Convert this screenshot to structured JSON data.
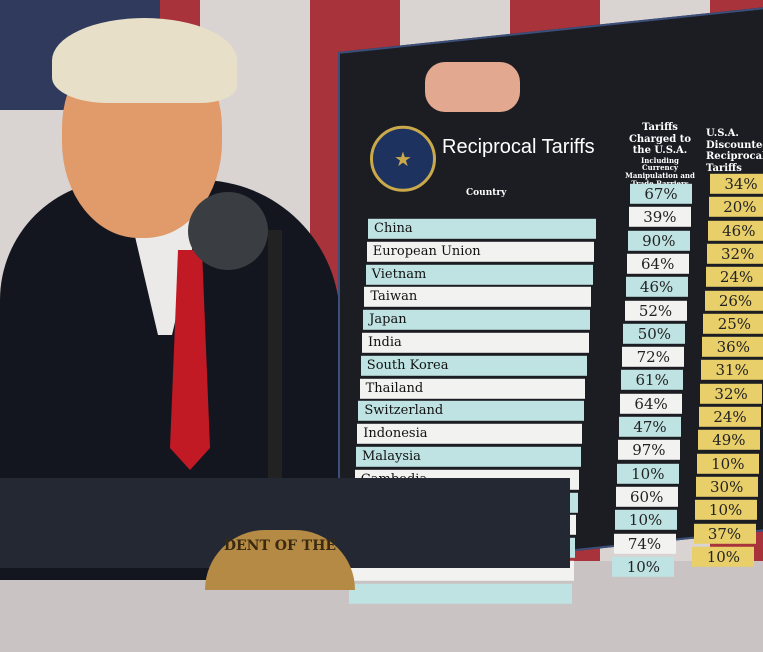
{
  "board": {
    "title": "Reciprocal Tariffs",
    "country_header": "Country",
    "charged_header": "Tariffs Charged to the U.S.A.",
    "charged_subheader": "Including Currency Manipulation and Trade Barriers",
    "discount_header": "U.S.A. Discounted Reciprocal Tariffs",
    "seal_icon": "presidential-seal",
    "rows": [
      {
        "country": "China",
        "charged": "67%",
        "reciprocal": "34%"
      },
      {
        "country": "European Union",
        "charged": "39%",
        "reciprocal": "20%"
      },
      {
        "country": "Vietnam",
        "charged": "90%",
        "reciprocal": "46%"
      },
      {
        "country": "Taiwan",
        "charged": "64%",
        "reciprocal": "32%"
      },
      {
        "country": "Japan",
        "charged": "46%",
        "reciprocal": "24%"
      },
      {
        "country": "India",
        "charged": "52%",
        "reciprocal": "26%"
      },
      {
        "country": "South Korea",
        "charged": "50%",
        "reciprocal": "25%"
      },
      {
        "country": "Thailand",
        "charged": "72%",
        "reciprocal": "36%"
      },
      {
        "country": "Switzerland",
        "charged": "61%",
        "reciprocal": "31%"
      },
      {
        "country": "Indonesia",
        "charged": "64%",
        "reciprocal": "32%"
      },
      {
        "country": "Malaysia",
        "charged": "47%",
        "reciprocal": "24%"
      },
      {
        "country": "Cambodia",
        "charged": "97%",
        "reciprocal": "49%"
      },
      {
        "country": "",
        "charged": "10%",
        "reciprocal": "10%"
      },
      {
        "country": "",
        "charged": "60%",
        "reciprocal": "30%"
      },
      {
        "country": "",
        "charged": "10%",
        "reciprocal": "10%"
      },
      {
        "country": "",
        "charged": "74%",
        "reciprocal": "37%"
      },
      {
        "country": "",
        "charged": "10%",
        "reciprocal": "10%"
      }
    ],
    "colors": {
      "teal": "#bfe3e3",
      "white": "#f2f2f0",
      "gold": "#e8cf6a",
      "board": "#1b1d22"
    }
  },
  "podium": {
    "seal_text": "DENT OF THE"
  }
}
